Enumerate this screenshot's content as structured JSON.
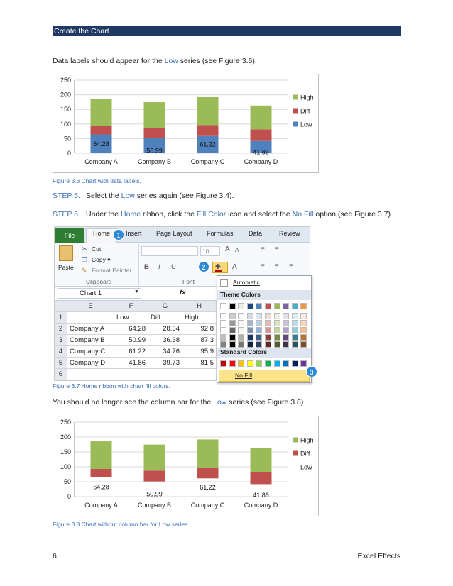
{
  "header": {
    "title": "Create the Chart"
  },
  "intro": {
    "before": "Data labels should appear for the ",
    "low_word": "Low",
    "after": " series (see Figure 3.6)."
  },
  "figure1": {
    "caption": "Figure 3.6 Chart with data labels."
  },
  "step5": {
    "label": "STEP 5.",
    "before": "Select the ",
    "low_word": "Low",
    "after": " series again (see Figure 3.4)."
  },
  "step6": {
    "label": "STEP 6.",
    "t1": "Under the ",
    "home_word": "Home",
    "t2": " ribbon, click the ",
    "fill_word": "Fill Color",
    "t3": " icon and select the ",
    "nofill_word": "No Fill",
    "t4": " option (see Figure 3.7)."
  },
  "figure2": {
    "caption": "Figure 3.7 Home ribbon with chart fill colors.",
    "tabs": [
      "File",
      "Home",
      "Insert",
      "Page Layout",
      "Formulas",
      "Data",
      "Review"
    ],
    "badges": [
      "1",
      "2",
      "3"
    ],
    "clipboard": {
      "paste": "Paste",
      "cut": "Cut",
      "copy": "Copy ▾",
      "format_painter": "Format Painter",
      "label": "Clipboard"
    },
    "font": {
      "size": "10",
      "bold": "B",
      "italic": "I",
      "underline": "U",
      "label": "Font"
    },
    "name_box": "Chart 1",
    "fx": "fx",
    "columns": [
      "E",
      "F",
      "G",
      "H"
    ],
    "header_row": [
      "",
      "Low",
      "Diff",
      "High"
    ],
    "rows": [
      {
        "num": "1",
        "cells": [
          "",
          "Low",
          "Diff",
          "High"
        ]
      },
      {
        "num": "2",
        "cells": [
          "Company A",
          "64.28",
          "28.54",
          "92.8"
        ]
      },
      {
        "num": "3",
        "cells": [
          "Company B",
          "50.99",
          "36.38",
          "87.3"
        ]
      },
      {
        "num": "4",
        "cells": [
          "Company C",
          "61.22",
          "34.76",
          "95.9"
        ]
      },
      {
        "num": "5",
        "cells": [
          "Company D",
          "41.86",
          "39.73",
          "81.5"
        ]
      },
      {
        "num": "6",
        "cells": [
          "",
          "",
          "",
          ""
        ]
      }
    ],
    "dropdown": {
      "automatic": "Automatic",
      "theme_colors": "Theme Colors",
      "standard_colors": "Standard Colors",
      "no_fill": "No Fill",
      "theme_top": [
        "#ffffff",
        "#000000",
        "#eeece1",
        "#1f497d",
        "#4f81bd",
        "#c0504d",
        "#9bbb59",
        "#8064a2",
        "#4bacc6",
        "#f79646"
      ],
      "standard": [
        "#c00000",
        "#ff0000",
        "#ffc000",
        "#ffff00",
        "#92d050",
        "#00b050",
        "#00b0f0",
        "#0070c0",
        "#002060",
        "#7030a0"
      ]
    }
  },
  "para3": {
    "before": "You should no longer see the column bar for the ",
    "low_word": "Low",
    "after": " series (see Figure 3.8)."
  },
  "figure3": {
    "caption": "Figure 3.8 Chart without column bar for Low series."
  },
  "footer": {
    "page": "6",
    "book": "Excel Effects"
  },
  "chart_data": [
    {
      "type": "bar",
      "stacked": true,
      "categories": [
        "Company A",
        "Company B",
        "Company C",
        "Company D"
      ],
      "series": [
        {
          "name": "Low",
          "values": [
            64.28,
            50.99,
            61.22,
            41.86
          ],
          "color": "#4f81bd",
          "data_labels": [
            "64.28",
            "50.99",
            "61.22",
            "41.86"
          ]
        },
        {
          "name": "Diff",
          "values": [
            28.54,
            36.38,
            34.76,
            39.73
          ],
          "color": "#c0504d"
        },
        {
          "name": "High",
          "values": [
            92.8,
            87.3,
            95.9,
            81.5
          ],
          "color": "#9bbb59"
        }
      ],
      "yticks": [
        "0",
        "50",
        "100",
        "150",
        "200",
        "250"
      ],
      "ylim": [
        0,
        250
      ],
      "legend": "right",
      "legend_order": [
        "High",
        "Diff",
        "Low"
      ],
      "grid": true
    },
    {
      "type": "bar",
      "stacked": true,
      "categories": [
        "Company A",
        "Company B",
        "Company C",
        "Company D"
      ],
      "series": [
        {
          "name": "Low",
          "values": [
            64.28,
            50.99,
            61.22,
            41.86
          ],
          "color": "none",
          "data_labels": [
            "64.28",
            "50.99",
            "61.22",
            "41.86"
          ]
        },
        {
          "name": "Diff",
          "values": [
            28.54,
            36.38,
            34.76,
            39.73
          ],
          "color": "#c0504d"
        },
        {
          "name": "High",
          "values": [
            92.8,
            87.3,
            95.9,
            81.5
          ],
          "color": "#9bbb59"
        }
      ],
      "yticks": [
        "0",
        "50",
        "100",
        "150",
        "200",
        "250"
      ],
      "ylim": [
        0,
        250
      ],
      "legend": "right",
      "legend_order": [
        "High",
        "Diff",
        "Low"
      ],
      "grid": true
    }
  ]
}
